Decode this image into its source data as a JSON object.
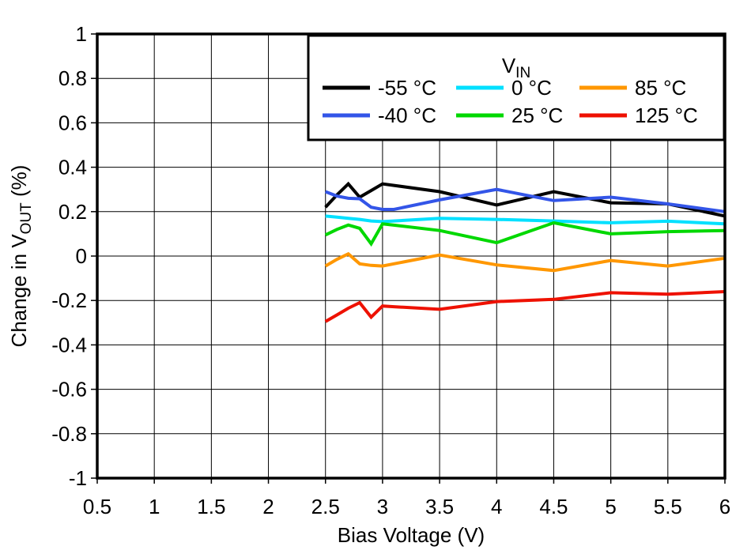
{
  "page": {
    "background": "#ffffff",
    "text_color": "#000000"
  },
  "chart_data": {
    "type": "line",
    "title": "",
    "xlabel": "Bias Voltage (V)",
    "ylabel_plain": "Change in VOUT (%)",
    "ylabel_parts": [
      {
        "t": "Change in V",
        "sub": false
      },
      {
        "t": "OUT",
        "sub": true
      },
      {
        "t": " (%)",
        "sub": false
      }
    ],
    "xlim": [
      0.5,
      6
    ],
    "ylim": [
      -1,
      1
    ],
    "xticks": [
      "0.5",
      "1",
      "1.5",
      "2",
      "2.5",
      "3",
      "3.5",
      "4",
      "4.5",
      "5",
      "5.5",
      "6"
    ],
    "yticks": [
      "1",
      "0.8",
      "0.6",
      "0.4",
      "0.2",
      "0",
      "-0.2",
      "-0.4",
      "-0.6",
      "-0.8",
      "-1"
    ],
    "grid": true,
    "legend": {
      "title_main": "V",
      "title_sub": "IN",
      "position": "top-right",
      "columns": 3,
      "rows": 2,
      "fill_order": "column-major"
    },
    "x": [
      2.5,
      2.6,
      2.7,
      2.8,
      2.9,
      3.0,
      3.1,
      3.5,
      4.0,
      4.5,
      5.0,
      5.5,
      6.0
    ],
    "series": [
      {
        "name": "-55 °C",
        "color": "#000000",
        "values": [
          0.22,
          0.275,
          0.325,
          0.265,
          0.295,
          0.325,
          0.318,
          0.29,
          0.23,
          0.29,
          0.24,
          0.235,
          0.18
        ]
      },
      {
        "name": "-40 °C",
        "color": "#3355E8",
        "values": [
          0.29,
          0.27,
          0.26,
          0.258,
          0.22,
          0.21,
          0.21,
          0.253,
          0.3,
          0.25,
          0.265,
          0.235,
          0.2
        ]
      },
      {
        "name": "0 °C",
        "color": "#00E0FF",
        "values": [
          0.18,
          0.175,
          0.17,
          0.165,
          0.158,
          0.155,
          0.158,
          0.17,
          0.165,
          0.158,
          0.15,
          0.157,
          0.145
        ]
      },
      {
        "name": "25 °C",
        "color": "#00D800",
        "values": [
          0.095,
          0.12,
          0.14,
          0.125,
          0.055,
          0.145,
          0.139,
          0.115,
          0.06,
          0.15,
          0.1,
          0.11,
          0.115
        ]
      },
      {
        "name": "85 °C",
        "color": "#FF9700",
        "values": [
          -0.045,
          -0.015,
          0.01,
          -0.035,
          -0.042,
          -0.045,
          -0.035,
          0.005,
          -0.04,
          -0.065,
          -0.02,
          -0.045,
          -0.01
        ]
      },
      {
        "name": "125 °C",
        "color": "#EE1100",
        "values": [
          -0.295,
          -0.265,
          -0.235,
          -0.21,
          -0.275,
          -0.225,
          -0.228,
          -0.24,
          -0.205,
          -0.195,
          -0.165,
          -0.172,
          -0.16
        ]
      }
    ]
  }
}
